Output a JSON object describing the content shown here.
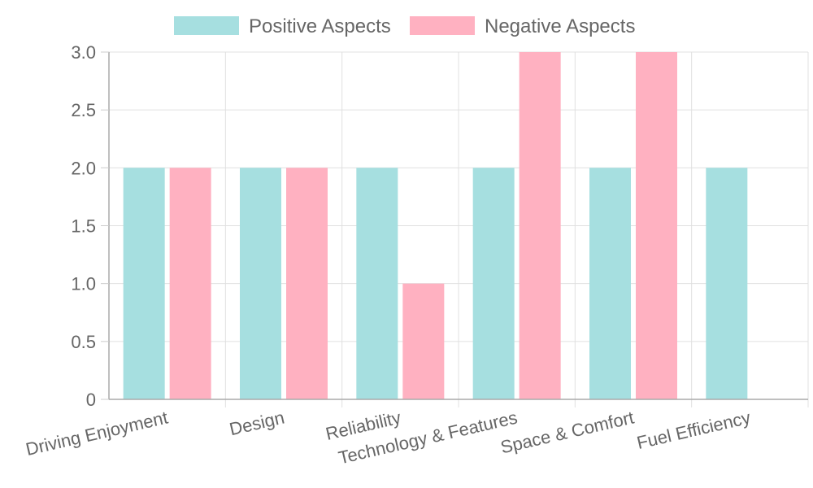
{
  "chart_data": {
    "type": "bar",
    "categories": [
      "Driving Enjoyment",
      "Design",
      "Reliability",
      "Technology & Features",
      "Space & Comfort",
      "Fuel Efficiency"
    ],
    "series": [
      {
        "name": "Positive Aspects",
        "values": [
          2,
          2,
          2,
          2,
          2,
          2
        ],
        "color": "#a6dfe0"
      },
      {
        "name": "Negative Aspects",
        "values": [
          2,
          2,
          1,
          3,
          3,
          0
        ],
        "color": "#ffb1c1"
      }
    ],
    "ylim": [
      0,
      3.0
    ],
    "yticks": [
      "0",
      "0.5",
      "1.0",
      "1.5",
      "2.0",
      "2.5",
      "3.0"
    ],
    "grid": true,
    "legend_position": "top-center",
    "title": "",
    "xlabel": "",
    "ylabel": ""
  }
}
